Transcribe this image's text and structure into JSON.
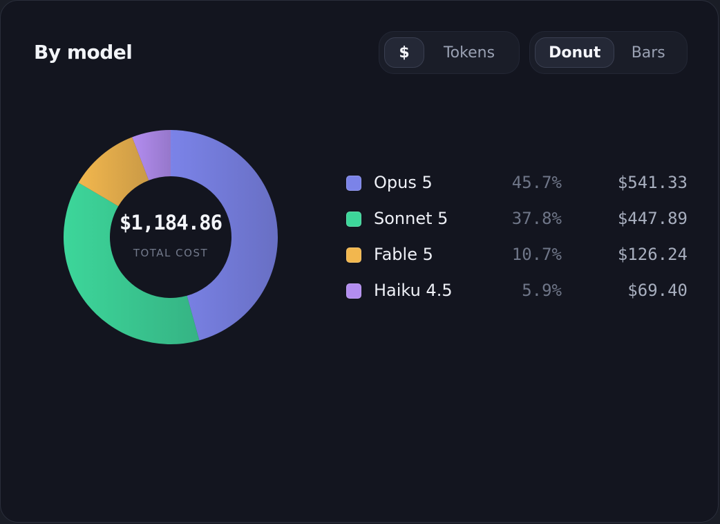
{
  "panel": {
    "title": "By model"
  },
  "unit_toggle": {
    "options": [
      "$",
      "Tokens"
    ],
    "selected": "$"
  },
  "view_toggle": {
    "options": [
      "Donut",
      "Bars"
    ],
    "selected": "Donut"
  },
  "chart_data": {
    "type": "pie",
    "donut": true,
    "center_value": "$1,184.86",
    "center_label": "TOTAL COST",
    "categories": [
      "Opus 5",
      "Sonnet 5",
      "Fable 5",
      "Haiku 4.5"
    ],
    "values": [
      541.33,
      447.89,
      126.24,
      69.4
    ],
    "percent_labels": [
      "45.7%",
      "37.8%",
      "10.7%",
      "5.9%"
    ],
    "value_labels": [
      "$541.33",
      "$447.89",
      "$126.24",
      "$69.40"
    ],
    "colors": [
      "#7b83e8",
      "#3dd69a",
      "#f2b74e",
      "#b38df0"
    ],
    "legend_placement": "right"
  }
}
